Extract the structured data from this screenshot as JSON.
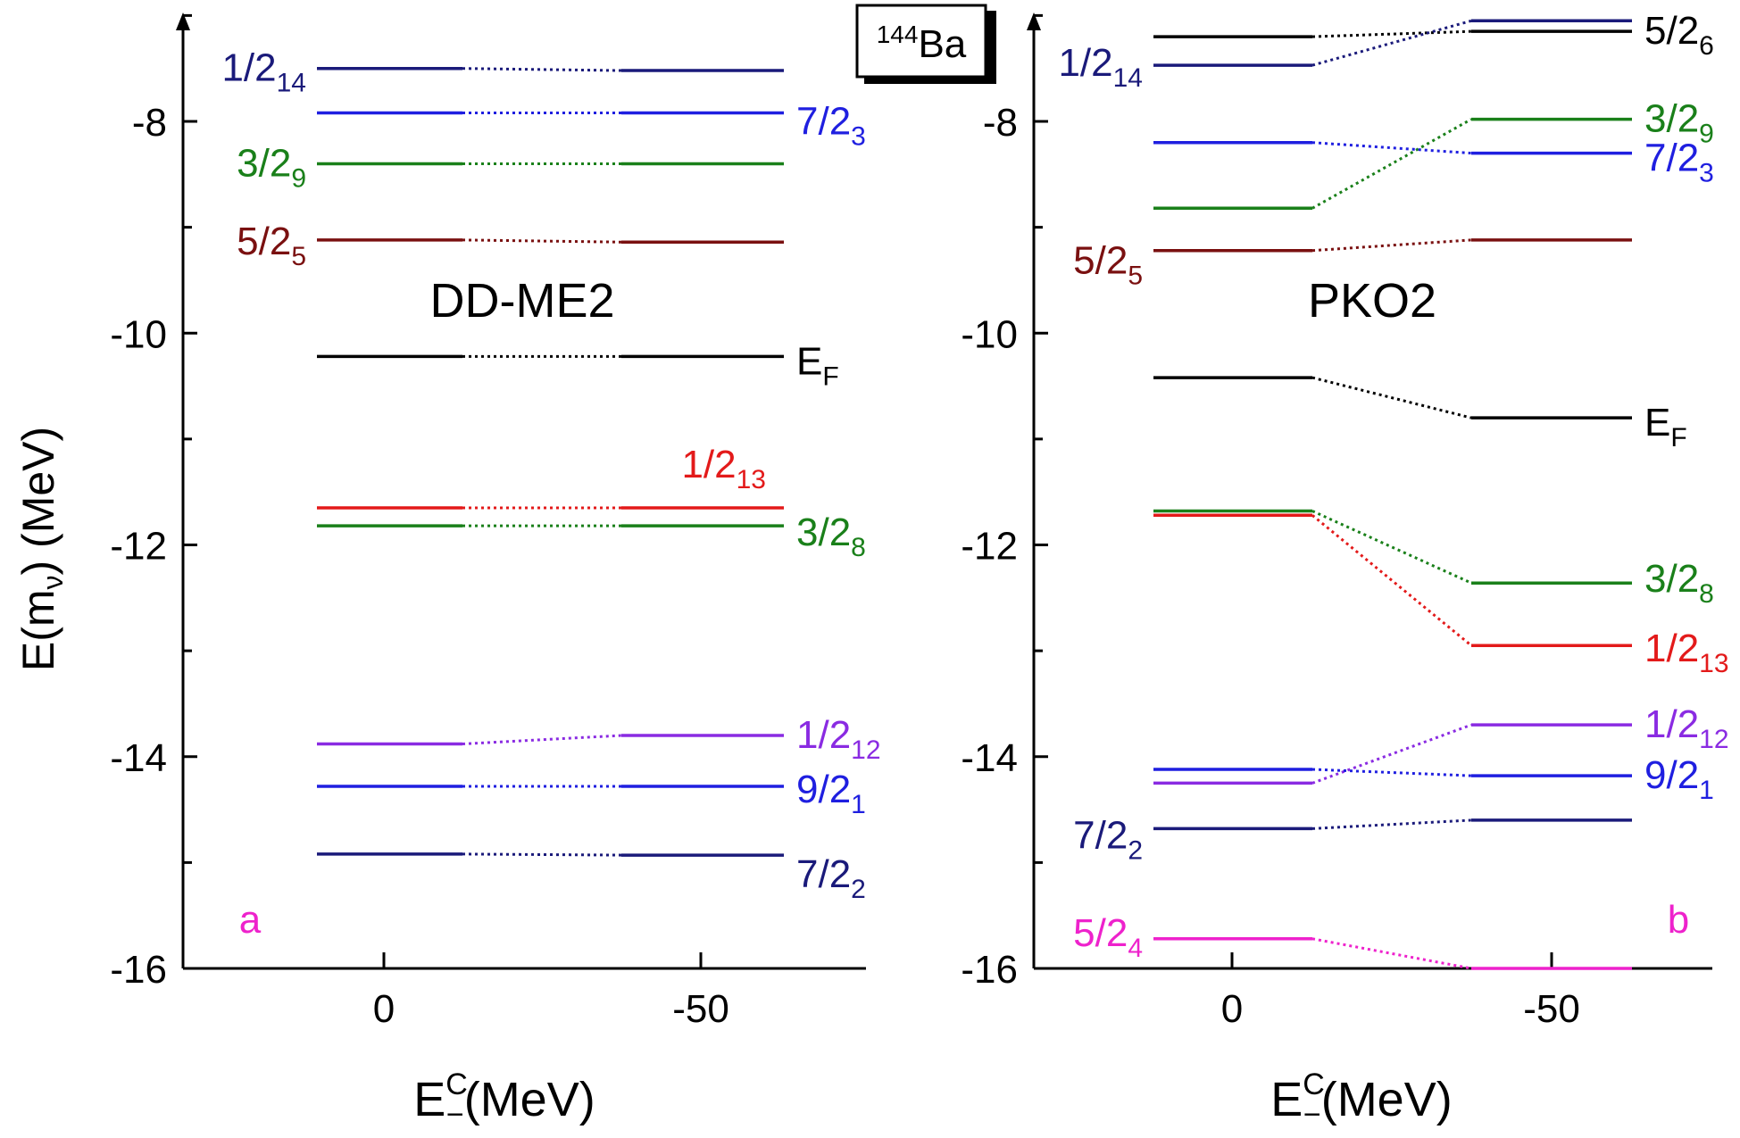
{
  "figure": {
    "nucleus": {
      "mass": "144",
      "element": "Ba"
    },
    "ylabel": {
      "main": "E(m",
      "sub": "ν",
      "tail": ") (MeV)"
    },
    "xlabel": {
      "main": "E",
      "sup": "C",
      "sub": "−",
      "tail": "(MeV)"
    }
  },
  "chart_data": [
    {
      "type": "line",
      "panel_label": "a",
      "title": "DD-ME2",
      "xlabel": "E_−^C(MeV)",
      "ylabel": "E(m_ν) (MeV)",
      "ylim": [
        -16,
        -6.9
      ],
      "yticks": [
        "-8",
        "-10",
        "-12",
        "-14",
        "-16"
      ],
      "x_categories": [
        0,
        -50
      ],
      "xticks": [
        "0",
        "-50"
      ],
      "grid": false,
      "series": [
        {
          "name": "1/2",
          "sub": "14",
          "color": "#1a1a7a",
          "values": [
            -7.5,
            -7.52
          ],
          "label_side": "left"
        },
        {
          "name": "7/2",
          "sub": "3",
          "color": "#1f1fe0",
          "values": [
            -7.92,
            -7.92
          ],
          "label_side": "right"
        },
        {
          "name": "3/2",
          "sub": "9",
          "color": "#1a801a",
          "values": [
            -8.4,
            -8.4
          ],
          "label_side": "left"
        },
        {
          "name": "5/2",
          "sub": "5",
          "color": "#7a1010",
          "values": [
            -9.12,
            -9.14
          ],
          "label_side": "left"
        },
        {
          "name": "E",
          "sub": "F",
          "color": "#000000",
          "values": [
            -10.22,
            -10.22
          ],
          "label_side": "right"
        },
        {
          "name": "1/2",
          "sub": "13",
          "color": "#e31a1a",
          "values": [
            -11.65,
            -11.65
          ],
          "label_side": "above-right"
        },
        {
          "name": "3/2",
          "sub": "8",
          "color": "#1a801a",
          "values": [
            -11.82,
            -11.82
          ],
          "label_side": "right"
        },
        {
          "name": "1/2",
          "sub": "12",
          "color": "#8a2be2",
          "values": [
            -13.88,
            -13.8
          ],
          "label_side": "right"
        },
        {
          "name": "9/2",
          "sub": "1",
          "color": "#1f1fe0",
          "values": [
            -14.28,
            -14.28
          ],
          "label_side": "right"
        },
        {
          "name": "7/2",
          "sub": "2",
          "color": "#1a1a7a",
          "values": [
            -14.92,
            -14.93
          ],
          "label_side": "right"
        }
      ]
    },
    {
      "type": "line",
      "panel_label": "b",
      "title": "PKO2",
      "xlabel": "E_−^C(MeV)",
      "ylabel": "E(m_ν) (MeV)",
      "ylim": [
        -16,
        -6.9
      ],
      "yticks": [
        "-8",
        "-10",
        "-12",
        "-14",
        "-16"
      ],
      "x_categories": [
        0,
        -50
      ],
      "xticks": [
        "0",
        "-50"
      ],
      "grid": false,
      "series": [
        {
          "name": "5/2",
          "sub": "6",
          "color": "#000000",
          "values": [
            -7.2,
            -7.15
          ],
          "label_side": "right"
        },
        {
          "name": "1/2",
          "sub": "14",
          "color": "#1a1a7a",
          "values": [
            -7.47,
            -7.05
          ],
          "label_side": "left"
        },
        {
          "name": "3/2",
          "sub": "9",
          "color": "#1a801a",
          "values": [
            -8.82,
            -7.98
          ],
          "label_side": "right"
        },
        {
          "name": "7/2",
          "sub": "3",
          "color": "#1f1fe0",
          "values": [
            -8.2,
            -8.3
          ],
          "label_side": "right"
        },
        {
          "name": "5/2",
          "sub": "5",
          "color": "#7a1010",
          "values": [
            -9.22,
            -9.12
          ],
          "label_side": "left"
        },
        {
          "name": "E",
          "sub": "F",
          "color": "#000000",
          "values": [
            -10.42,
            -10.8
          ],
          "label_side": "right"
        },
        {
          "name": "3/2",
          "sub": "8",
          "color": "#1a801a",
          "values": [
            -11.68,
            -12.36
          ],
          "label_side": "right"
        },
        {
          "name": "1/2",
          "sub": "13",
          "color": "#e31a1a",
          "values": [
            -11.72,
            -12.95
          ],
          "label_side": "right"
        },
        {
          "name": "1/2",
          "sub": "12",
          "color": "#8a2be2",
          "values": [
            -14.25,
            -13.7
          ],
          "label_side": "right"
        },
        {
          "name": "9/2",
          "sub": "1",
          "color": "#1f1fe0",
          "values": [
            -14.12,
            -14.18
          ],
          "label_side": "right"
        },
        {
          "name": "7/2",
          "sub": "2",
          "color": "#1a1a7a",
          "values": [
            -14.68,
            -14.6
          ],
          "label_side": "left"
        },
        {
          "name": "5/2",
          "sub": "4",
          "color": "#ee22cc",
          "values": [
            -15.72,
            -16.0
          ],
          "label_side": "left"
        }
      ]
    }
  ]
}
